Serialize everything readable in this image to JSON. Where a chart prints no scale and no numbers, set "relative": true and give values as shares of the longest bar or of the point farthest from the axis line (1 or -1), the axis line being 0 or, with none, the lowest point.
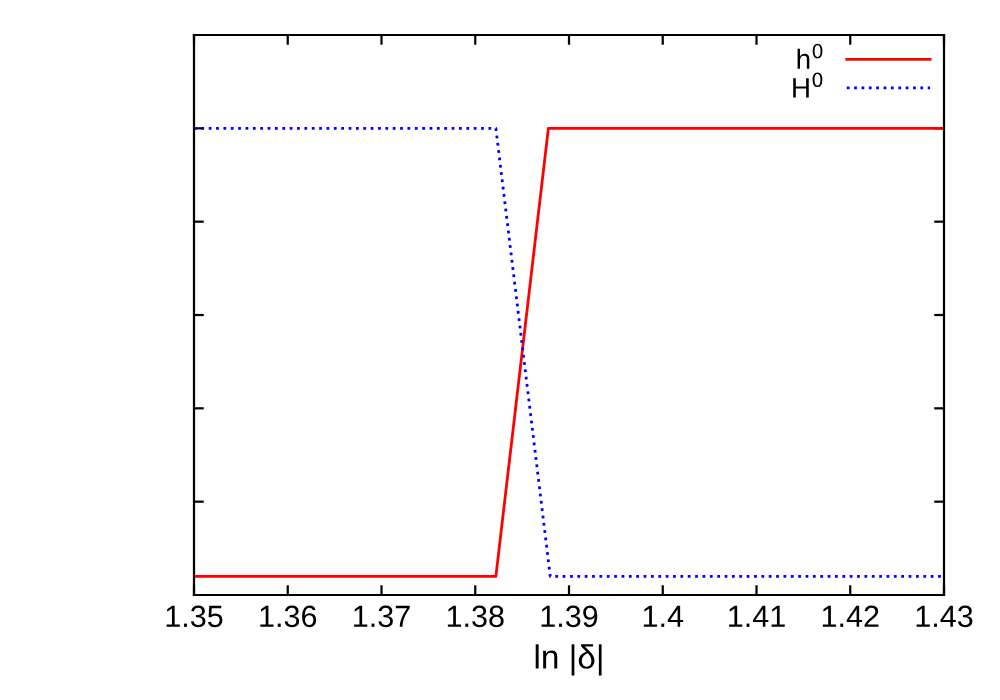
{
  "chart_data": {
    "type": "line",
    "xlabel": "ln |δ|",
    "relative": true,
    "tick_labels": "x",
    "legend": "top right",
    "grid": false,
    "xlim": [
      1.35,
      1.43
    ],
    "xticks": [
      1.35,
      1.36,
      1.37,
      1.38,
      1.39,
      1.4,
      1.41,
      1.42,
      1.43
    ],
    "series": [
      {
        "name": "h$^{0}$",
        "color": "#ff0000",
        "line_style": "solid",
        "x": [
          1.35,
          1.3822,
          1.3878,
          1.43
        ],
        "values": [
          0.04,
          0.04,
          1,
          1
        ]
      },
      {
        "name": "H$^{0}$",
        "color": "#0000ff",
        "line_style": "dotted",
        "x": [
          1.35,
          1.3822,
          1.388,
          1.43
        ],
        "values": [
          1,
          1,
          0.04,
          0.04
        ]
      }
    ]
  }
}
